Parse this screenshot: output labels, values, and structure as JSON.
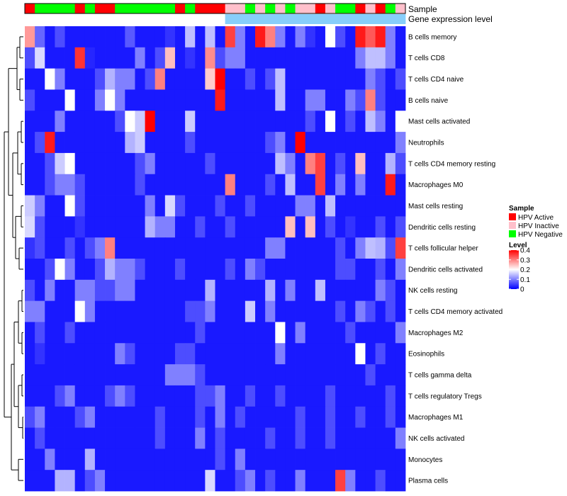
{
  "chart_data": {
    "type": "heatmap",
    "annotation_labels": [
      "Sample",
      "Gene expression level"
    ],
    "rows": [
      "B cells memory",
      "T cells CD8",
      "T cells CD4 naive",
      "B cells naive",
      "Mast cells activated",
      "Neutrophils",
      "T cells CD4 memory resting",
      "Macrophages M0",
      "Mast cells resting",
      "Dendritic cells resting",
      "T cells follicular helper",
      "Dendritic cells activated",
      "NK cells resting",
      "T cells CD4 memory activated",
      "Macrophages M2",
      "Eosinophils",
      "T cells gamma delta",
      "T cells regulatory  Tregs",
      "Macrophages M1",
      "NK cells activated",
      "Monocytes",
      "Plasma cells"
    ],
    "sample_groups": [
      "A",
      "N",
      "N",
      "N",
      "N",
      "A",
      "N",
      "A",
      "A",
      "N",
      "N",
      "N",
      "N",
      "N",
      "N",
      "A",
      "N",
      "A",
      "A",
      "A",
      "I",
      "I",
      "N",
      "I",
      "N",
      "I",
      "N",
      "I",
      "I",
      "A",
      "I",
      "N",
      "N",
      "A",
      "I",
      "A",
      "N",
      "I"
    ],
    "gene_expression_level": [
      0,
      0,
      0,
      0,
      0,
      0,
      0,
      0,
      0,
      0,
      0,
      0,
      0,
      0,
      0,
      0,
      0,
      0,
      0,
      0,
      1,
      1,
      1,
      1,
      1,
      1,
      1,
      1,
      1,
      1,
      1,
      1,
      1,
      1,
      1,
      1,
      1,
      1
    ],
    "values": [
      [
        0.28,
        0.08,
        0.02,
        0.06,
        0.02,
        0.02,
        0.02,
        0.02,
        0.02,
        0.02,
        0.07,
        0.02,
        0.02,
        0.02,
        0.04,
        0.02,
        0.15,
        0.02,
        0.15,
        0.02,
        0.35,
        0.1,
        0.02,
        0.38,
        0.3,
        0.1,
        0.02,
        0.1,
        0.04,
        0.02,
        0.2,
        0.06,
        0.02,
        0.38,
        0.33,
        0.38,
        0.1,
        0.02
      ],
      [
        0.06,
        0.17,
        0.02,
        0.02,
        0.02,
        0.36,
        0.03,
        0.02,
        0.02,
        0.02,
        0.02,
        0.1,
        0.02,
        0.06,
        0.25,
        0.02,
        0.04,
        0.02,
        0.29,
        0.06,
        0.1,
        0.1,
        0.02,
        0.02,
        0.02,
        0.02,
        0.02,
        0.02,
        0.02,
        0.02,
        0.02,
        0.02,
        0.02,
        0.1,
        0.15,
        0.15,
        0.1,
        0.02
      ],
      [
        0.02,
        0.02,
        0.2,
        0.1,
        0.02,
        0.02,
        0.02,
        0.06,
        0.14,
        0.1,
        0.1,
        0.02,
        0.06,
        0.3,
        0.02,
        0.02,
        0.02,
        0.02,
        0.24,
        0.4,
        0.02,
        0.02,
        0.06,
        0.02,
        0.06,
        0.15,
        0.02,
        0.02,
        0.02,
        0.02,
        0.02,
        0.02,
        0.02,
        0.02,
        0.1,
        0.06,
        0.02,
        0.06
      ],
      [
        0.06,
        0.02,
        0.02,
        0.02,
        0.2,
        0.02,
        0.02,
        0.1,
        0.2,
        0.1,
        0.02,
        0.02,
        0.02,
        0.02,
        0.02,
        0.02,
        0.02,
        0.02,
        0.02,
        0.38,
        0.02,
        0.02,
        0.02,
        0.02,
        0.02,
        0.15,
        0.02,
        0.02,
        0.1,
        0.1,
        0.02,
        0.02,
        0.1,
        0.06,
        0.3,
        0.06,
        0.02,
        0.02
      ],
      [
        0.02,
        0.02,
        0.02,
        0.1,
        0.02,
        0.02,
        0.02,
        0.02,
        0.02,
        0.06,
        0.2,
        0.16,
        0.4,
        0.02,
        0.02,
        0.02,
        0.16,
        0.02,
        0.02,
        0.02,
        0.02,
        0.02,
        0.02,
        0.02,
        0.02,
        0.02,
        0.02,
        0.02,
        0.06,
        0.02,
        0.2,
        0.02,
        0.06,
        0.02,
        0.15,
        0.1,
        0.02,
        0.2
      ],
      [
        0.02,
        0.06,
        0.38,
        0.02,
        0.02,
        0.02,
        0.02,
        0.02,
        0.02,
        0.02,
        0.14,
        0.16,
        0.02,
        0.02,
        0.02,
        0.02,
        0.06,
        0.02,
        0.02,
        0.02,
        0.02,
        0.02,
        0.02,
        0.02,
        0.06,
        0.1,
        0.02,
        0.4,
        0.02,
        0.02,
        0.02,
        0.02,
        0.02,
        0.02,
        0.02,
        0.02,
        0.02,
        0.1
      ],
      [
        0.02,
        0.02,
        0.06,
        0.16,
        0.2,
        0.02,
        0.02,
        0.02,
        0.02,
        0.02,
        0.02,
        0.06,
        0.1,
        0.02,
        0.02,
        0.02,
        0.02,
        0.02,
        0.06,
        0.02,
        0.02,
        0.02,
        0.02,
        0.02,
        0.02,
        0.15,
        0.1,
        0.02,
        0.3,
        0.35,
        0.02,
        0.06,
        0.02,
        0.25,
        0.02,
        0.02,
        0.14,
        0.06
      ],
      [
        0.02,
        0.02,
        0.06,
        0.1,
        0.1,
        0.06,
        0.02,
        0.02,
        0.02,
        0.02,
        0.02,
        0.06,
        0.02,
        0.02,
        0.02,
        0.02,
        0.02,
        0.02,
        0.02,
        0.02,
        0.3,
        0.02,
        0.02,
        0.02,
        0.06,
        0.02,
        0.15,
        0.02,
        0.02,
        0.35,
        0.02,
        0.1,
        0.02,
        0.1,
        0.02,
        0.02,
        0.38,
        0.02
      ],
      [
        0.16,
        0.1,
        0.02,
        0.02,
        0.2,
        0.06,
        0.02,
        0.02,
        0.02,
        0.02,
        0.02,
        0.02,
        0.1,
        0.02,
        0.17,
        0.06,
        0.02,
        0.02,
        0.02,
        0.06,
        0.02,
        0.02,
        0.06,
        0.02,
        0.02,
        0.02,
        0.02,
        0.1,
        0.1,
        0.02,
        0.15,
        0.02,
        0.02,
        0.02,
        0.02,
        0.02,
        0.02,
        0.02
      ],
      [
        0.17,
        0.06,
        0.02,
        0.02,
        0.02,
        0.04,
        0.02,
        0.02,
        0.02,
        0.02,
        0.02,
        0.02,
        0.14,
        0.1,
        0.1,
        0.02,
        0.02,
        0.06,
        0.02,
        0.02,
        0.06,
        0.02,
        0.02,
        0.02,
        0.02,
        0.02,
        0.25,
        0.02,
        0.25,
        0.02,
        0.06,
        0.02,
        0.04,
        0.02,
        0.02,
        0.06,
        0.02,
        0.06
      ],
      [
        0.04,
        0.06,
        0.02,
        0.02,
        0.06,
        0.02,
        0.06,
        0.1,
        0.3,
        0.02,
        0.02,
        0.02,
        0.02,
        0.02,
        0.02,
        0.02,
        0.02,
        0.02,
        0.02,
        0.02,
        0.02,
        0.02,
        0.02,
        0.02,
        0.1,
        0.1,
        0.02,
        0.02,
        0.02,
        0.02,
        0.02,
        0.06,
        0.02,
        0.1,
        0.15,
        0.14,
        0.06,
        0.35
      ],
      [
        0.02,
        0.02,
        0.06,
        0.2,
        0.1,
        0.02,
        0.02,
        0.06,
        0.14,
        0.1,
        0.1,
        0.06,
        0.02,
        0.02,
        0.02,
        0.06,
        0.02,
        0.02,
        0.02,
        0.02,
        0.06,
        0.02,
        0.1,
        0.06,
        0.02,
        0.02,
        0.02,
        0.02,
        0.02,
        0.02,
        0.02,
        0.06,
        0.06,
        0.02,
        0.02,
        0.06,
        0.02,
        0.1
      ],
      [
        0.06,
        0.02,
        0.1,
        0.02,
        0.02,
        0.1,
        0.1,
        0.06,
        0.06,
        0.1,
        0.1,
        0.02,
        0.02,
        0.02,
        0.02,
        0.02,
        0.02,
        0.02,
        0.14,
        0.02,
        0.02,
        0.02,
        0.02,
        0.02,
        0.14,
        0.02,
        0.1,
        0.02,
        0.02,
        0.15,
        0.02,
        0.02,
        0.02,
        0.02,
        0.02,
        0.1,
        0.06,
        0.02
      ],
      [
        0.1,
        0.1,
        0.02,
        0.02,
        0.02,
        0.2,
        0.1,
        0.02,
        0.02,
        0.02,
        0.02,
        0.02,
        0.02,
        0.02,
        0.02,
        0.02,
        0.06,
        0.06,
        0.1,
        0.02,
        0.02,
        0.02,
        0.16,
        0.02,
        0.1,
        0.02,
        0.02,
        0.02,
        0.02,
        0.02,
        0.02,
        0.06,
        0.02,
        0.1,
        0.06,
        0.02,
        0.06,
        0.02
      ],
      [
        0.02,
        0.06,
        0.02,
        0.02,
        0.06,
        0.02,
        0.02,
        0.02,
        0.02,
        0.02,
        0.02,
        0.02,
        0.02,
        0.02,
        0.02,
        0.02,
        0.02,
        0.06,
        0.02,
        0.02,
        0.02,
        0.02,
        0.02,
        0.02,
        0.02,
        0.2,
        0.02,
        0.1,
        0.02,
        0.02,
        0.02,
        0.02,
        0.06,
        0.02,
        0.02,
        0.02,
        0.02,
        0.1
      ],
      [
        0.02,
        0.04,
        0.02,
        0.02,
        0.02,
        0.02,
        0.02,
        0.02,
        0.02,
        0.1,
        0.06,
        0.02,
        0.02,
        0.02,
        0.02,
        0.06,
        0.06,
        0.02,
        0.02,
        0.02,
        0.02,
        0.02,
        0.02,
        0.02,
        0.02,
        0.1,
        0.02,
        0.02,
        0.02,
        0.02,
        0.02,
        0.02,
        0.02,
        0.2,
        0.02,
        0.06,
        0.02,
        0.02
      ],
      [
        0.02,
        0.02,
        0.02,
        0.02,
        0.02,
        0.02,
        0.02,
        0.02,
        0.02,
        0.02,
        0.02,
        0.02,
        0.02,
        0.02,
        0.1,
        0.1,
        0.1,
        0.06,
        0.02,
        0.02,
        0.02,
        0.02,
        0.02,
        0.02,
        0.02,
        0.02,
        0.02,
        0.02,
        0.02,
        0.02,
        0.02,
        0.02,
        0.02,
        0.02,
        0.06,
        0.02,
        0.02,
        0.02
      ],
      [
        0.02,
        0.02,
        0.02,
        0.06,
        0.1,
        0.02,
        0.02,
        0.02,
        0.06,
        0.1,
        0.06,
        0.02,
        0.02,
        0.02,
        0.02,
        0.02,
        0.02,
        0.06,
        0.06,
        0.1,
        0.02,
        0.02,
        0.06,
        0.02,
        0.02,
        0.06,
        0.02,
        0.02,
        0.02,
        0.02,
        0.06,
        0.02,
        0.02,
        0.02,
        0.02,
        0.02,
        0.06,
        0.02
      ],
      [
        0.06,
        0.1,
        0.02,
        0.02,
        0.02,
        0.06,
        0.1,
        0.02,
        0.02,
        0.02,
        0.02,
        0.02,
        0.02,
        0.06,
        0.02,
        0.02,
        0.02,
        0.06,
        0.02,
        0.1,
        0.02,
        0.06,
        0.02,
        0.02,
        0.02,
        0.02,
        0.02,
        0.06,
        0.02,
        0.02,
        0.06,
        0.02,
        0.02,
        0.06,
        0.02,
        0.02,
        0.06,
        0.02
      ],
      [
        0.02,
        0.06,
        0.02,
        0.02,
        0.02,
        0.02,
        0.02,
        0.02,
        0.02,
        0.02,
        0.02,
        0.02,
        0.02,
        0.06,
        0.02,
        0.02,
        0.02,
        0.1,
        0.02,
        0.06,
        0.02,
        0.02,
        0.02,
        0.02,
        0.06,
        0.02,
        0.02,
        0.06,
        0.02,
        0.02,
        0.06,
        0.02,
        0.02,
        0.02,
        0.02,
        0.02,
        0.02,
        0.1
      ],
      [
        0.02,
        0.02,
        0.1,
        0.02,
        0.02,
        0.02,
        0.14,
        0.02,
        0.02,
        0.02,
        0.02,
        0.02,
        0.02,
        0.02,
        0.02,
        0.02,
        0.02,
        0.02,
        0.02,
        0.06,
        0.02,
        0.1,
        0.02,
        0.02,
        0.02,
        0.02,
        0.02,
        0.02,
        0.02,
        0.02,
        0.02,
        0.02,
        0.02,
        0.02,
        0.02,
        0.02,
        0.02,
        0.02
      ],
      [
        0.02,
        0.02,
        0.02,
        0.14,
        0.14,
        0.02,
        0.06,
        0.1,
        0.02,
        0.02,
        0.02,
        0.02,
        0.02,
        0.02,
        0.02,
        0.02,
        0.02,
        0.02,
        0.17,
        0.02,
        0.02,
        0.06,
        0.1,
        0.02,
        0.06,
        0.02,
        0.02,
        0.1,
        0.02,
        0.02,
        0.02,
        0.35,
        0.1,
        0.02,
        0.02,
        0.06,
        0.02,
        0.02
      ]
    ],
    "legend": {
      "sample_title": "Sample",
      "sample_items": [
        {
          "key": "A",
          "label": "HPV Active",
          "color": "#ff0000"
        },
        {
          "key": "I",
          "label": "HPV Inactive",
          "color": "#ffc0cb"
        },
        {
          "key": "N",
          "label": "HPV Negative",
          "color": "#00ff00"
        }
      ],
      "level_title": "Level",
      "level_ticks": [
        "0.4",
        "0.3",
        "0.2",
        "0.1",
        "0"
      ],
      "level_range": [
        0,
        0.4
      ]
    },
    "colors": {
      "low": "#0000ff",
      "mid": "#ffffff",
      "high": "#ff0000",
      "expr_level_0": "#ffffff",
      "expr_level_1": "#87cefa"
    }
  }
}
